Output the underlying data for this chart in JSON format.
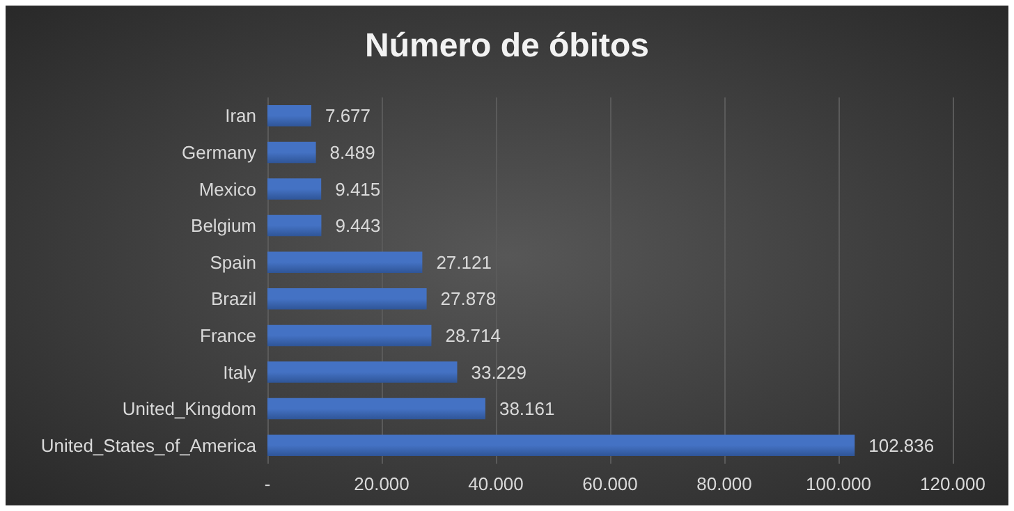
{
  "chart_data": {
    "type": "bar",
    "orientation": "horizontal",
    "title": "Número de óbitos",
    "categories": [
      "Iran",
      "Germany",
      "Mexico",
      "Belgium",
      "Spain",
      "Brazil",
      "France",
      "Italy",
      "United_Kingdom",
      "United_States_of_America"
    ],
    "values": [
      7677,
      8489,
      9415,
      9443,
      27121,
      27878,
      28714,
      33229,
      38161,
      102836
    ],
    "value_labels": [
      "7.677",
      "8.489",
      "9.415",
      "9.443",
      "27.121",
      "27.878",
      "28.714",
      "33.229",
      "38.161",
      "102.836"
    ],
    "color": "#4472c4",
    "xlim": [
      0,
      120000
    ],
    "xticks": [
      {
        "value": 0,
        "label": "-"
      },
      {
        "value": 20000,
        "label": "20.000"
      },
      {
        "value": 40000,
        "label": "40.000"
      },
      {
        "value": 60000,
        "label": "60.000"
      },
      {
        "value": 80000,
        "label": "80.000"
      },
      {
        "value": 100000,
        "label": "100.000"
      },
      {
        "value": 120000,
        "label": "120.000"
      }
    ],
    "grid": "x"
  }
}
